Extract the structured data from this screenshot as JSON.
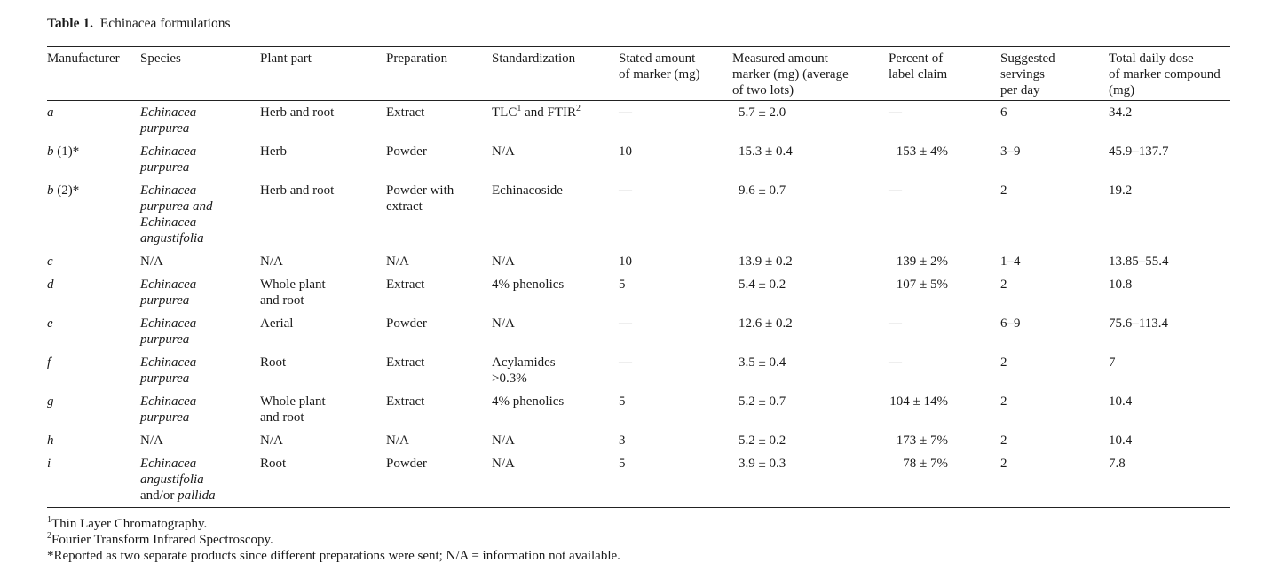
{
  "table": {
    "number": "Table 1.",
    "title": "Echinacea formulations",
    "headers": [
      "Manufacturer",
      "Species",
      "Plant part",
      "Preparation",
      "Standardization",
      "Stated amount\nof marker (mg)",
      "Measured amount\nmarker (mg) (average\nof two lots)",
      "Percent of\nlabel claim",
      "Suggested\nservings\nper day",
      "Total daily dose\nof marker compound\n(mg)"
    ],
    "rows": [
      {
        "manufacturer": "a",
        "species": "Echinacea\npurpurea",
        "plant_part": "Herb and root",
        "preparation": "Extract",
        "standardization": "TLC¹ and FTIR²",
        "stated": "—",
        "measured": "5.7 ± 2.0",
        "percent": "—",
        "servings": "6",
        "total": "34.2"
      },
      {
        "manufacturer": "b (1)*",
        "species": "Echinacea\npurpurea",
        "plant_part": "Herb",
        "preparation": "Powder",
        "standardization": "N/A",
        "stated": "10",
        "measured": "15.3 ± 0.4",
        "percent": "153 ± 4%",
        "servings": "3–9",
        "total": "45.9–137.7"
      },
      {
        "manufacturer": "b (2)*",
        "species": "Echinacea\npurpurea and\nEchinacea\nangustifolia",
        "plant_part": "Herb and root",
        "preparation": "Powder with\nextract",
        "standardization": "Echinacoside",
        "stated": "—",
        "measured": "9.6 ± 0.7",
        "percent": "—",
        "servings": "2",
        "total": "19.2"
      },
      {
        "manufacturer": "c",
        "species": "N/A",
        "plant_part": "N/A",
        "preparation": "N/A",
        "standardization": "N/A",
        "stated": "10",
        "measured": "13.9 ± 0.2",
        "percent": "139 ± 2%",
        "servings": "1–4",
        "total": "13.85–55.4"
      },
      {
        "manufacturer": "d",
        "species": "Echinacea\npurpurea",
        "plant_part": "Whole plant\nand root",
        "preparation": "Extract",
        "standardization": "4% phenolics",
        "stated": "5",
        "measured": "5.4 ± 0.2",
        "percent": "107 ± 5%",
        "servings": "2",
        "total": "10.8"
      },
      {
        "manufacturer": "e",
        "species": "Echinacea\npurpurea",
        "plant_part": "Aerial",
        "preparation": "Powder",
        "standardization": "N/A",
        "stated": "—",
        "measured": "12.6 ± 0.2",
        "percent": "—",
        "servings": "6–9",
        "total": "75.6–113.4"
      },
      {
        "manufacturer": "f",
        "species": "Echinacea\npurpurea",
        "plant_part": "Root",
        "preparation": "Extract",
        "standardization": "Acylamides\n>0.3%",
        "stated": "—",
        "measured": "3.5 ± 0.4",
        "percent": "—",
        "servings": "2",
        "total": "7"
      },
      {
        "manufacturer": "g",
        "species": "Echinacea\npurpurea",
        "plant_part": "Whole plant\nand root",
        "preparation": "Extract",
        "standardization": "4% phenolics",
        "stated": "5",
        "measured": "5.2 ± 0.7",
        "percent": "104 ± 14%",
        "servings": "2",
        "total": "10.4"
      },
      {
        "manufacturer": "h",
        "species": "N/A",
        "plant_part": "N/A",
        "preparation": "N/A",
        "standardization": "N/A",
        "stated": "3",
        "measured": "5.2 ± 0.2",
        "percent": "173 ± 7%",
        "servings": "2",
        "total": "10.4"
      },
      {
        "manufacturer": "i",
        "species": "Echinacea\nangustifolia\nand/or pallida",
        "plant_part": "Root",
        "preparation": "Powder",
        "standardization": "N/A",
        "stated": "5",
        "measured": "3.9 ± 0.3",
        "percent": "78 ± 7%",
        "servings": "2",
        "total": "7.8"
      }
    ],
    "footnotes": [
      "¹Thin Layer Chromatography.",
      "²Fourier Transform Infrared Spectroscopy.",
      "*Reported as two separate products since different preparations were sent; N/A = information not available."
    ]
  }
}
